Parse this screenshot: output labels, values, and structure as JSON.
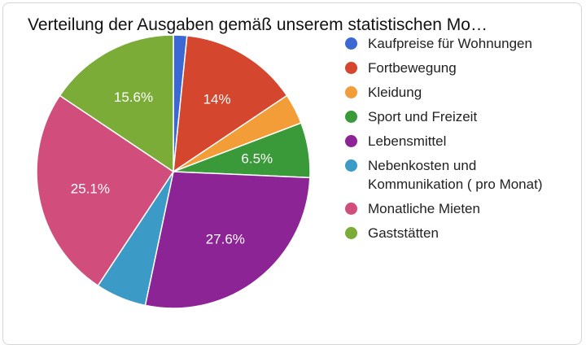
{
  "chart_data": {
    "type": "pie",
    "title": "Verteilung der Ausgaben gemäß unserem statistischen Mo…",
    "legend_position": "right",
    "slices": [
      {
        "name": "Kaufpreise für Wohnungen",
        "value": 1.6,
        "label": "",
        "color": "#3b68d3"
      },
      {
        "name": "Fortbewegung",
        "value": 14.0,
        "label": "14%",
        "color": "#d4462d"
      },
      {
        "name": "Kleidung",
        "value": 3.6,
        "label": "",
        "color": "#f29d38"
      },
      {
        "name": "Sport und Freizeit",
        "value": 6.5,
        "label": "6.5%",
        "color": "#3a9a39"
      },
      {
        "name": "Lebensmittel",
        "value": 27.6,
        "label": "27.6%",
        "color": "#8c2496"
      },
      {
        "name": "Nebenkosten und Kommunikation ( pro Monat)",
        "value": 6.0,
        "label": "",
        "color": "#3b9ac6"
      },
      {
        "name": "Monatliche Mieten",
        "value": 25.1,
        "label": "25.1%",
        "color": "#d14e7c"
      },
      {
        "name": "Gaststätten",
        "value": 15.6,
        "label": "15.6%",
        "color": "#7aac37"
      }
    ]
  }
}
